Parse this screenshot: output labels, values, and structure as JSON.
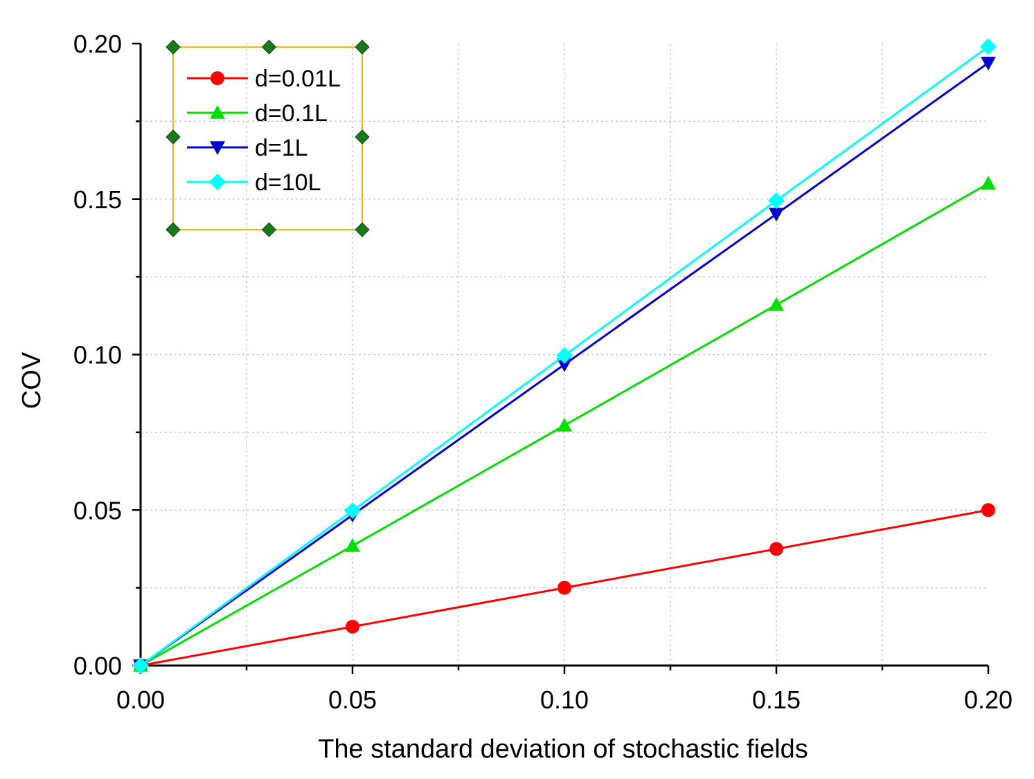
{
  "chart_data": {
    "type": "line",
    "title": "",
    "xlabel": "The standard deviation of stochastic fields",
    "ylabel": "COV",
    "xlim": [
      0,
      0.2
    ],
    "ylim": [
      0,
      0.2
    ],
    "x_ticks": [
      "0.00",
      "0.05",
      "0.10",
      "0.15",
      "0.20"
    ],
    "y_ticks": [
      "0.00",
      "0.05",
      "0.10",
      "0.15",
      "0.20"
    ],
    "grid": true,
    "legend_position": "top-left",
    "x": [
      0,
      0.05,
      0.1,
      0.15,
      0.2
    ],
    "series": [
      {
        "name": "d=0.01L",
        "color": "#ff0000",
        "marker": "circle",
        "values": [
          0,
          0.0125,
          0.025,
          0.0375,
          0.05
        ]
      },
      {
        "name": "d=0.1L",
        "color": "#00e000",
        "marker": "triangle-up",
        "values": [
          0,
          0.0385,
          0.0772,
          0.116,
          0.155
        ]
      },
      {
        "name": "d=1L",
        "color": "#0000d0",
        "marker": "triangle-down",
        "values": [
          0,
          0.0484,
          0.0968,
          0.1452,
          0.1938
        ]
      },
      {
        "name": "d=10L",
        "color": "#00ffff",
        "marker": "diamond",
        "values": [
          0,
          0.0498,
          0.0997,
          0.1495,
          0.199
        ]
      }
    ]
  }
}
